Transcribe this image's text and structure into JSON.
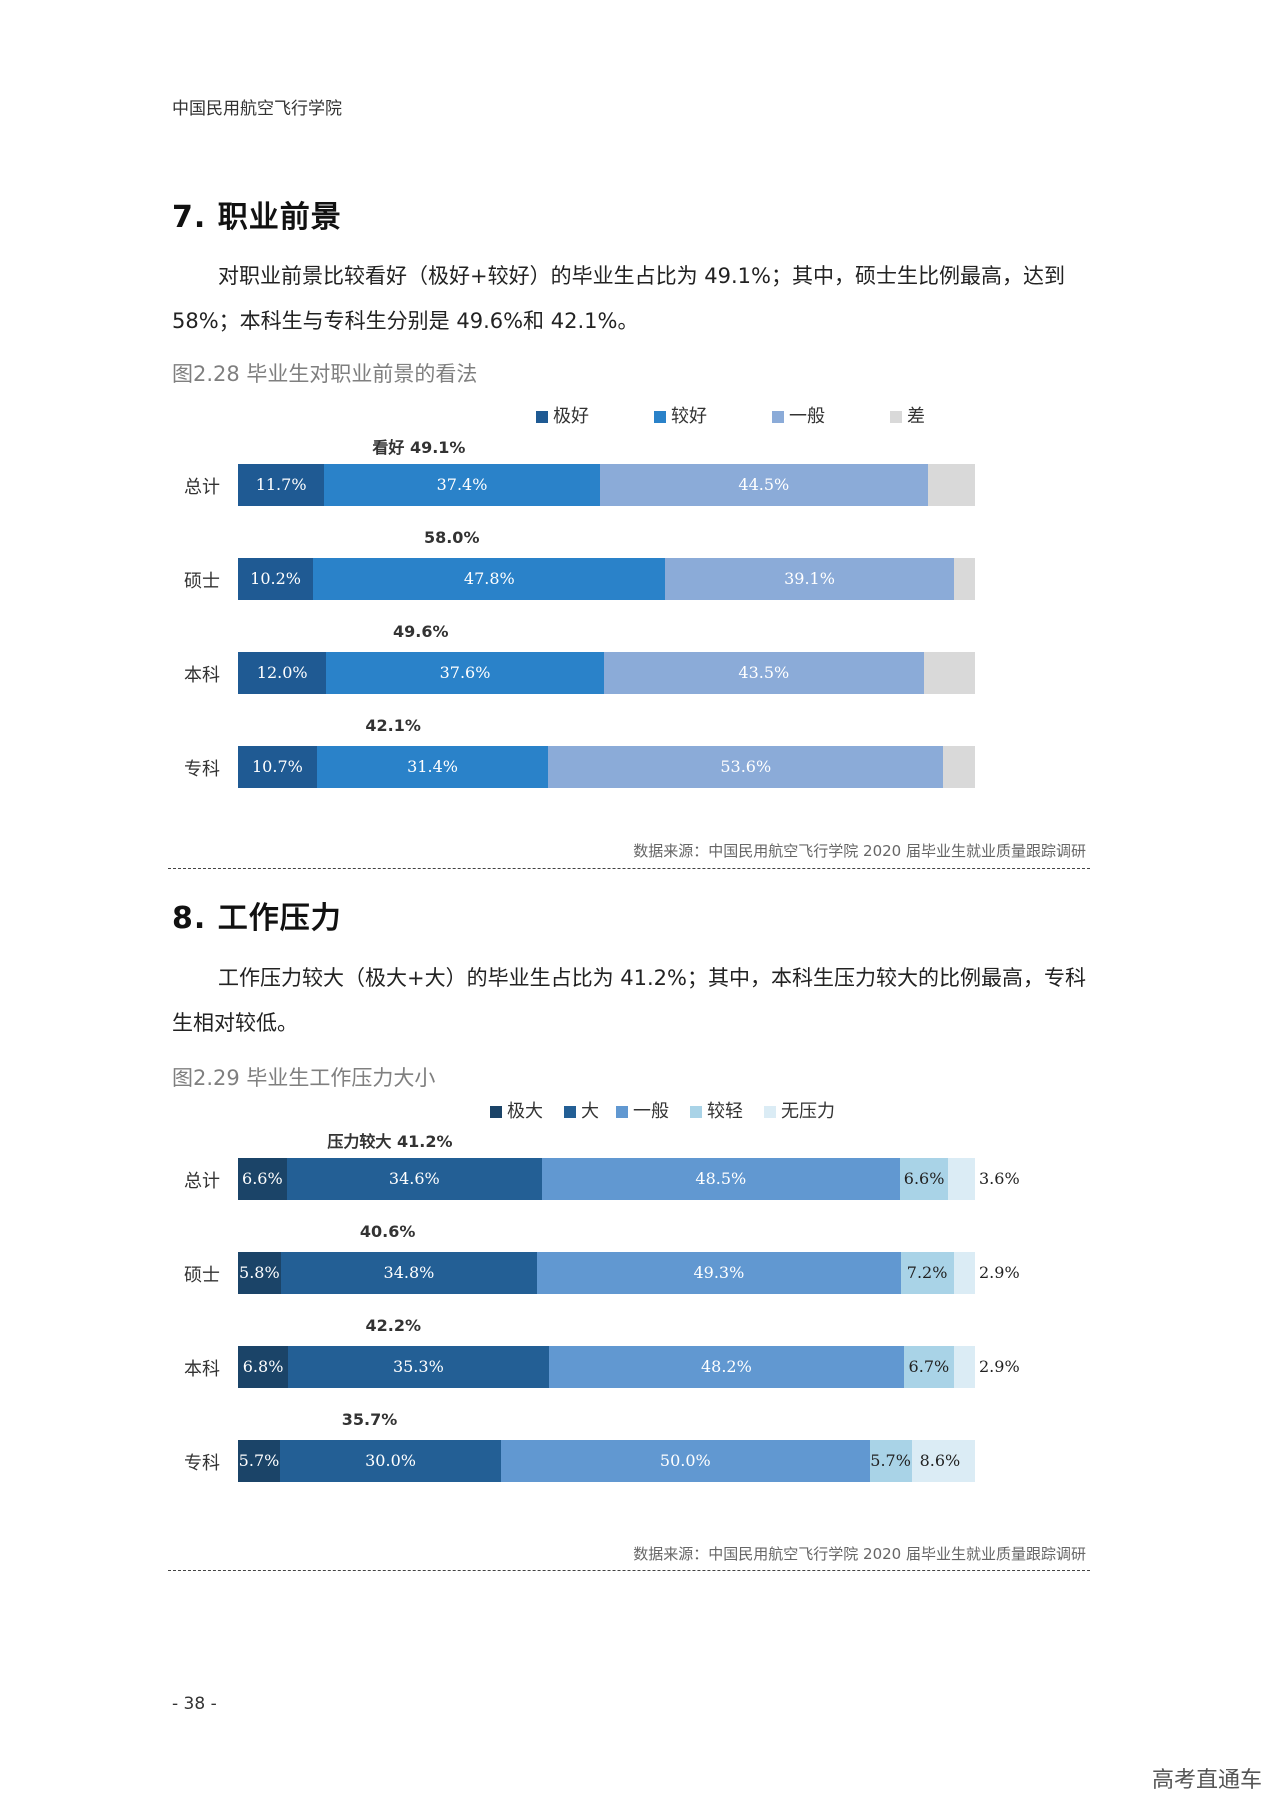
{
  "header": {
    "org": "中国民用航空飞行学院"
  },
  "section7": {
    "title": "7. 职业前景",
    "para": "对职业前景比较看好（极好+较好）的毕业生占比为 49.1%；其中，硕士生比例最高，达到 58%；本科生与专科生分别是 49.6%和 42.1%。",
    "fig_title": "图2.28 毕业生对职业前景的看法",
    "source": "数据来源：中国民用航空飞行学院 2020 届毕业生就业质量跟踪调研"
  },
  "section8": {
    "title": "8. 工作压力",
    "para": "工作压力较大（极大+大）的毕业生占比为 41.2%；其中，本科生压力较大的比例最高，专科生相对较低。",
    "fig_title": "图2.29 毕业生工作压力大小",
    "source": "数据来源：中国民用航空飞行学院 2020 届毕业生就业质量跟踪调研"
  },
  "page_number": "- 38 -",
  "watermark": "高考直通车",
  "chart_data": [
    {
      "type": "bar",
      "orientation": "horizontal-stacked",
      "categories": [
        "总计",
        "硕士",
        "本科",
        "专科"
      ],
      "series": [
        {
          "name": "极好",
          "color": "#1f5a93",
          "values": [
            11.7,
            10.2,
            12.0,
            10.7
          ],
          "labels": [
            "11.7%",
            "10.2%",
            "12.0%",
            "10.7%"
          ]
        },
        {
          "name": "较好",
          "color": "#2a82c9",
          "values": [
            37.4,
            47.8,
            37.6,
            31.4
          ],
          "labels": [
            "37.4%",
            "47.8%",
            "37.6%",
            "31.4%"
          ]
        },
        {
          "name": "一般",
          "color": "#8babd8",
          "values": [
            44.5,
            39.1,
            43.5,
            53.6
          ],
          "labels": [
            "44.5%",
            "39.1%",
            "43.5%",
            "53.6%"
          ]
        },
        {
          "name": "差",
          "color": "#d9d9d9",
          "values": [
            6.4,
            2.9,
            6.9,
            4.3
          ],
          "labels": [
            "",
            "",
            "",
            ""
          ]
        }
      ],
      "annotations": [
        "看好 49.1%",
        "58.0%",
        "49.6%",
        "42.1%"
      ],
      "legend_position": "top"
    },
    {
      "type": "bar",
      "orientation": "horizontal-stacked",
      "categories": [
        "总计",
        "硕士",
        "本科",
        "专科"
      ],
      "series": [
        {
          "name": "极大",
          "color": "#1b4468",
          "values": [
            6.6,
            5.8,
            6.8,
            5.7
          ],
          "labels": [
            "6.6%",
            "5.8%",
            "6.8%",
            "5.7%"
          ]
        },
        {
          "name": "大",
          "color": "#235f95",
          "values": [
            34.6,
            34.8,
            35.3,
            30.0
          ],
          "labels": [
            "34.6%",
            "34.8%",
            "35.3%",
            "30.0%"
          ]
        },
        {
          "name": "一般",
          "color": "#6198d1",
          "values": [
            48.5,
            49.3,
            48.2,
            50.0
          ],
          "labels": [
            "48.5%",
            "49.3%",
            "48.2%",
            "50.0%"
          ]
        },
        {
          "name": "较轻",
          "color": "#a9d3e7",
          "values": [
            6.6,
            7.2,
            6.7,
            5.7
          ],
          "labels": [
            "6.6%",
            "7.2%",
            "6.7%",
            "5.7%"
          ]
        },
        {
          "name": "无压力",
          "color": "#dbecf5",
          "values": [
            3.6,
            2.9,
            2.9,
            8.6
          ],
          "labels": [
            "3.6%",
            "2.9%",
            "2.9%",
            "8.6%"
          ]
        }
      ],
      "annotations": [
        "压力较大 41.2%",
        "40.6%",
        "42.2%",
        "35.7%"
      ],
      "legend_position": "top"
    }
  ]
}
